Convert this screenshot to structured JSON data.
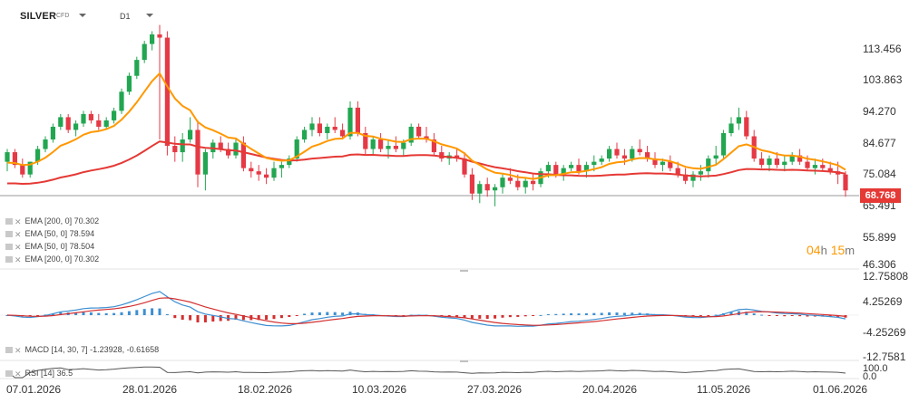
{
  "header": {
    "symbol": "SILVER",
    "symbol_type": "CFD",
    "timeframe": "D1"
  },
  "indicators_legend": [
    {
      "label": "EMA [200, 0] 70.302",
      "icon": "eye-icon"
    },
    {
      "label": "EMA [50, 0] 78.594",
      "icon": "eye-icon"
    },
    {
      "label": "EMA [50, 0] 78.504",
      "icon": "eye-icon"
    },
    {
      "label": "EMA [200, 0] 70.302",
      "icon": "eye-icon"
    }
  ],
  "macd_legend": "MACD [14, 30, 7] -1.23928, -0.61658",
  "rsi_legend": "RSI [14] 36.5",
  "countdown": {
    "hours": "04",
    "h_unit": "h",
    "minutes": "15",
    "m_unit": "m"
  },
  "current_price": "68.768",
  "colors": {
    "up": "#22a651",
    "down": "#e53945",
    "ema50": "#ff9800",
    "ema200": "#e53935",
    "macd_line": "#3d8fd1",
    "signal_line": "#d32f2f",
    "current_price_tag": "#e53935"
  },
  "chart_data": {
    "type": "candlestick",
    "price_axis_ticks": [
      "113.456",
      "103.863",
      "94.270",
      "84.677",
      "75.084",
      "65.491",
      "55.899",
      "46.306"
    ],
    "macd_axis_ticks": [
      "12.75808",
      "4.25269",
      "-4.25269",
      "-12.7581"
    ],
    "rsi_axis_ticks": [
      "100.0",
      "0.0"
    ],
    "x_axis_dates": [
      "07.01.2026",
      "28.01.2026",
      "18.02.2026",
      "10.03.2026",
      "27.03.2026",
      "20.04.2026",
      "11.05.2026",
      "01.06.2026"
    ],
    "ohlc": [
      [
        78,
        82,
        75,
        81
      ],
      [
        81,
        82,
        76,
        77
      ],
      [
        77,
        79,
        73,
        74
      ],
      [
        74,
        78,
        73,
        78
      ],
      [
        78,
        83,
        77,
        82
      ],
      [
        82,
        86,
        81,
        85
      ],
      [
        85,
        90,
        84,
        89
      ],
      [
        89,
        93,
        88,
        92
      ],
      [
        92,
        93,
        87,
        88
      ],
      [
        88,
        91,
        86,
        90
      ],
      [
        90,
        94,
        89,
        93
      ],
      [
        93,
        94,
        90,
        91
      ],
      [
        91,
        93,
        88,
        89
      ],
      [
        89,
        92,
        88,
        91
      ],
      [
        91,
        95,
        90,
        94
      ],
      [
        94,
        101,
        93,
        100
      ],
      [
        100,
        106,
        99,
        105
      ],
      [
        105,
        111,
        104,
        110
      ],
      [
        110,
        116,
        109,
        115
      ],
      [
        115,
        119,
        113,
        118
      ],
      [
        118,
        121,
        85,
        117
      ],
      [
        117,
        119,
        80,
        83
      ],
      [
        83,
        86,
        78,
        81
      ],
      [
        81,
        87,
        78,
        85
      ],
      [
        85,
        92,
        84,
        88
      ],
      [
        88,
        91,
        70,
        74
      ],
      [
        74,
        82,
        69,
        81
      ],
      [
        81,
        85,
        79,
        84
      ],
      [
        84,
        86,
        81,
        82
      ],
      [
        82,
        84,
        79,
        80
      ],
      [
        80,
        85,
        79,
        84
      ],
      [
        84,
        86,
        75,
        76
      ],
      [
        76,
        78,
        73,
        75
      ],
      [
        75,
        77,
        72,
        74
      ],
      [
        74,
        76,
        71,
        73
      ],
      [
        73,
        78,
        72,
        76
      ],
      [
        76,
        78,
        73,
        77
      ],
      [
        77,
        80,
        76,
        79
      ],
      [
        79,
        86,
        78,
        85
      ],
      [
        85,
        89,
        84,
        88
      ],
      [
        88,
        92,
        86,
        90
      ],
      [
        90,
        92,
        86,
        87
      ],
      [
        87,
        90,
        85,
        89
      ],
      [
        89,
        92,
        87,
        88
      ],
      [
        88,
        90,
        85,
        86
      ],
      [
        86,
        97,
        85,
        95
      ],
      [
        95,
        97,
        86,
        87
      ],
      [
        87,
        89,
        80,
        82
      ],
      [
        82,
        86,
        80,
        85
      ],
      [
        85,
        87,
        81,
        82
      ],
      [
        82,
        85,
        79,
        83
      ],
      [
        83,
        86,
        81,
        82
      ],
      [
        82,
        85,
        80,
        84
      ],
      [
        84,
        90,
        83,
        89
      ],
      [
        89,
        90,
        85,
        86
      ],
      [
        86,
        89,
        84,
        85
      ],
      [
        85,
        87,
        80,
        81
      ],
      [
        81,
        83,
        78,
        79
      ],
      [
        79,
        81,
        77,
        80
      ],
      [
        80,
        82,
        78,
        79
      ],
      [
        79,
        81,
        73,
        74
      ],
      [
        74,
        76,
        66,
        68
      ],
      [
        68,
        72,
        65,
        71
      ],
      [
        71,
        73,
        67,
        69
      ],
      [
        69,
        71,
        64,
        70
      ],
      [
        70,
        74,
        68,
        73
      ],
      [
        73,
        76,
        71,
        72
      ],
      [
        72,
        74,
        69,
        70
      ],
      [
        70,
        73,
        68,
        72
      ],
      [
        72,
        74,
        69,
        71
      ],
      [
        71,
        76,
        70,
        75
      ],
      [
        75,
        78,
        73,
        77
      ],
      [
        77,
        78,
        73,
        74
      ],
      [
        74,
        77,
        72,
        76
      ],
      [
        76,
        78,
        75,
        77
      ],
      [
        77,
        79,
        74,
        75
      ],
      [
        75,
        78,
        73,
        77
      ],
      [
        77,
        80,
        75,
        78
      ],
      [
        78,
        80,
        77,
        79
      ],
      [
        79,
        83,
        78,
        82
      ],
      [
        82,
        84,
        79,
        80
      ],
      [
        80,
        82,
        77,
        79
      ],
      [
        79,
        83,
        78,
        82
      ],
      [
        82,
        85,
        80,
        81
      ],
      [
        81,
        83,
        78,
        79
      ],
      [
        79,
        81,
        76,
        77
      ],
      [
        77,
        79,
        75,
        78
      ],
      [
        78,
        80,
        75,
        76
      ],
      [
        76,
        78,
        73,
        74
      ],
      [
        74,
        76,
        71,
        72
      ],
      [
        72,
        75,
        70,
        74
      ],
      [
        74,
        77,
        72,
        75
      ],
      [
        75,
        80,
        73,
        79
      ],
      [
        79,
        83,
        77,
        80
      ],
      [
        80,
        88,
        79,
        87
      ],
      [
        87,
        92,
        86,
        90
      ],
      [
        90,
        95,
        88,
        92
      ],
      [
        92,
        94,
        85,
        86
      ],
      [
        86,
        88,
        78,
        79
      ],
      [
        79,
        81,
        76,
        77
      ],
      [
        77,
        80,
        75,
        79
      ],
      [
        79,
        81,
        76,
        77
      ],
      [
        77,
        80,
        75,
        78
      ],
      [
        78,
        81,
        77,
        80
      ],
      [
        80,
        82,
        77,
        78
      ],
      [
        78,
        80,
        75,
        76
      ],
      [
        76,
        79,
        74,
        77
      ],
      [
        77,
        79,
        75,
        76
      ],
      [
        76,
        78,
        74,
        75
      ],
      [
        75,
        78,
        71,
        74
      ],
      [
        74,
        75,
        67,
        69
      ]
    ]
  }
}
